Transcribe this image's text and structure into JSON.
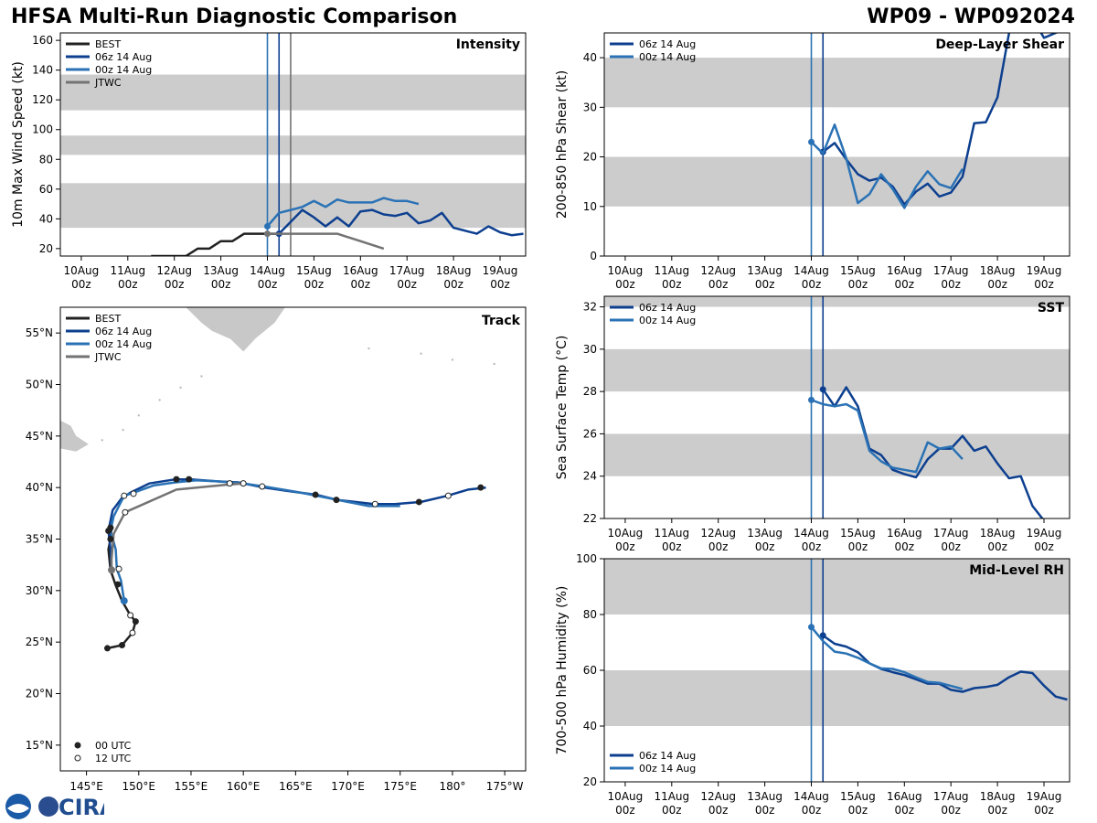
{
  "header": {
    "title_left": "HFSA Multi-Run Diagnostic Comparison",
    "title_right": "WP09 - WP092024"
  },
  "colors": {
    "best": "#222222",
    "run06": "#0d3f8f",
    "run00": "#2a72b5",
    "jtwc": "#737373",
    "band": "#cccccc",
    "land": "#c8c8c8"
  },
  "time_ticks": [
    "10Aug\n00z",
    "11Aug\n00z",
    "12Aug\n00z",
    "13Aug\n00z",
    "14Aug\n00z",
    "15Aug\n00z",
    "16Aug\n00z",
    "17Aug\n00z",
    "18Aug\n00z",
    "19Aug\n00z"
  ],
  "logo_text": "CIRA",
  "chart_data": [
    {
      "id": "intensity",
      "type": "line",
      "title": "Intensity",
      "ylabel": "10m Max Wind Speed (kt)",
      "xlim": [
        -0.45,
        9.55
      ],
      "ylim": [
        15,
        165
      ],
      "yticks": [
        20,
        40,
        60,
        80,
        100,
        120,
        140,
        160
      ],
      "bands": [
        [
          34,
          64
        ],
        [
          83,
          96
        ],
        [
          113,
          137
        ]
      ],
      "vlines": [
        4.0,
        4.25,
        4.5
      ],
      "legend": "top-left",
      "series": [
        {
          "name": "BEST",
          "color_key": "best",
          "x": [
            1.5,
            1.75,
            2,
            2.25,
            2.5,
            2.75,
            3,
            3.25,
            3.5,
            3.75,
            4,
            4.25
          ],
          "y": [
            15,
            15,
            15,
            15,
            20,
            20,
            25,
            25,
            30,
            30,
            30,
            30
          ]
        },
        {
          "name": "06z 14 Aug",
          "color_key": "run06",
          "x": [
            4.25,
            4.5,
            4.75,
            5,
            5.25,
            5.5,
            5.75,
            6,
            6.25,
            6.5,
            6.75,
            7,
            7.25,
            7.5,
            7.75,
            8,
            8.25,
            8.5,
            8.75,
            9,
            9.25,
            9.5
          ],
          "y": [
            30,
            38,
            46,
            41,
            35,
            41,
            35,
            45,
            46,
            43,
            42,
            44,
            37,
            39,
            44,
            34,
            32,
            30,
            35,
            31,
            29,
            30
          ]
        },
        {
          "name": "00z 14 Aug",
          "color_key": "run00",
          "x": [
            4,
            4.25,
            4.5,
            4.75,
            5,
            5.25,
            5.5,
            5.75,
            6,
            6.25,
            6.5,
            6.75,
            7,
            7.25
          ],
          "y": [
            35,
            44,
            46,
            48,
            52,
            48,
            53,
            51,
            51,
            51,
            54,
            52,
            52,
            50
          ]
        },
        {
          "name": "JTWC",
          "color_key": "jtwc",
          "x": [
            4,
            4.5,
            5,
            5.5,
            6,
            6.5
          ],
          "y": [
            30,
            30,
            30,
            30,
            25,
            20
          ]
        }
      ]
    },
    {
      "id": "shear",
      "type": "line",
      "title": "Deep-Layer Shear",
      "ylabel": "200-850 hPa Shear (kt)",
      "xlim": [
        -0.45,
        9.55
      ],
      "ylim": [
        0,
        45
      ],
      "yticks": [
        0,
        10,
        20,
        30,
        40
      ],
      "bands": [
        [
          10,
          20
        ],
        [
          30,
          40
        ]
      ],
      "vlines": [
        4.0,
        4.25
      ],
      "legend": "top-left",
      "series": [
        {
          "name": "06z 14 Aug",
          "color_key": "run06",
          "x": [
            4.25,
            4.5,
            4.75,
            5,
            5.25,
            5.5,
            5.75,
            6,
            6.25,
            6.5,
            6.75,
            7,
            7.25,
            7.5,
            7.75,
            8,
            8.25,
            8.5,
            8.75,
            9,
            9.25,
            9.5
          ],
          "y": [
            21,
            22.8,
            19.5,
            16.5,
            15.2,
            15.8,
            14,
            10.4,
            13,
            14.6,
            12,
            12.8,
            16,
            26.8,
            27,
            32,
            45,
            50,
            48,
            44,
            45,
            46
          ]
        },
        {
          "name": "00z 14 Aug",
          "color_key": "run00",
          "x": [
            4,
            4.25,
            4.5,
            4.75,
            5,
            5.25,
            5.5,
            5.75,
            6,
            6.25,
            6.5,
            6.75,
            7,
            7.25
          ],
          "y": [
            23,
            20.7,
            26.5,
            19.7,
            10.7,
            12.5,
            16.5,
            13.5,
            9.7,
            14,
            17.1,
            14.5,
            13.7,
            17.6
          ]
        }
      ]
    },
    {
      "id": "track",
      "type": "map",
      "title": "Track",
      "lon_ticks": [
        "145°E",
        "150°E",
        "155°E",
        "160°E",
        "165°E",
        "170°E",
        "175°E",
        "180°",
        "175°W"
      ],
      "lat_ticks": [
        "15°N",
        "20°N",
        "25°N",
        "30°N",
        "35°N",
        "40°N",
        "45°N",
        "50°N",
        "55°N"
      ],
      "lonlim": [
        142.5,
        187
      ],
      "latlim": [
        12.5,
        57.5
      ],
      "point_legend": [
        "00 UTC",
        "12 UTC"
      ],
      "legend": "top-left",
      "series": [
        {
          "name": "BEST",
          "color_key": "best",
          "lon": [
            147,
            148.4,
            149.4,
            149.7,
            149.2,
            148.4,
            147.8,
            147.3,
            147.1,
            147.3,
            147.4
          ],
          "lat": [
            24.4,
            24.7,
            25.9,
            27,
            27.6,
            29,
            30.5,
            32,
            34,
            35,
            36.1
          ]
        },
        {
          "name": "06z 14 Aug",
          "color_key": "run06",
          "lon": [
            147.4,
            147.3,
            147.1,
            147.5,
            148.4,
            149.2,
            151,
            153.5,
            155,
            157.5,
            159.5,
            162,
            164,
            167,
            169,
            172.5,
            174.5,
            177,
            179.5,
            181.5,
            183.2
          ],
          "lat": [
            32,
            34,
            35.8,
            37.8,
            39,
            39.5,
            40.4,
            40.8,
            40.8,
            40.6,
            40.5,
            40,
            39.7,
            39.3,
            38.8,
            38.4,
            38.4,
            38.6,
            39.2,
            39.8,
            40
          ]
        },
        {
          "name": "00z 14 Aug",
          "color_key": "run00",
          "lon": [
            148.6,
            148.3,
            147.9,
            147.8,
            147.3,
            147.6,
            148.6,
            149.5,
            151.4,
            153.5,
            155.5,
            157.5,
            160,
            162,
            165,
            168,
            172,
            175
          ],
          "lat": [
            29,
            31,
            32.1,
            34,
            35.8,
            37.2,
            39.2,
            39.5,
            40.2,
            40.5,
            40.7,
            40.6,
            40.4,
            40.1,
            39.6,
            39.0,
            38.2,
            38.2
          ]
        },
        {
          "name": "JTWC",
          "color_key": "jtwc",
          "lon": [
            147.4,
            147.4,
            147.6,
            148.7,
            153.6,
            158.7,
            160
          ],
          "lat": [
            32,
            33,
            35.5,
            37.6,
            39.8,
            40.3,
            40.4
          ]
        }
      ],
      "markers_00utc": [
        [
          147,
          24.4
        ],
        [
          148.4,
          24.7
        ],
        [
          149.7,
          27
        ],
        [
          147.3,
          35
        ],
        [
          147.3,
          36.1
        ],
        [
          147.1,
          35.8
        ],
        [
          153.6,
          40.8
        ],
        [
          154.8,
          40.8
        ],
        [
          166.9,
          39.3
        ],
        [
          168.9,
          38.8
        ],
        [
          176.8,
          38.6
        ],
        [
          182.7,
          40
        ],
        [
          148.0,
          30.6
        ]
      ],
      "markers_12utc": [
        [
          149.4,
          25.9
        ],
        [
          149.2,
          27.6
        ],
        [
          148.1,
          32.1
        ],
        [
          148.6,
          39.2
        ],
        [
          149.5,
          39.4
        ],
        [
          148.7,
          37.6
        ],
        [
          158.7,
          40.4
        ],
        [
          160,
          40.4
        ],
        [
          161.8,
          40.1
        ],
        [
          172.6,
          38.4
        ],
        [
          179.6,
          39.2
        ]
      ]
    },
    {
      "id": "sst",
      "type": "line",
      "title": "SST",
      "ylabel": "Sea Surface Temp (°C)",
      "xlim": [
        -0.45,
        9.55
      ],
      "ylim": [
        22,
        32.5
      ],
      "yticks": [
        22,
        24,
        26,
        28,
        30,
        32
      ],
      "bands": [
        [
          24,
          26
        ],
        [
          28,
          30
        ],
        [
          32,
          33
        ]
      ],
      "vlines": [
        4.0,
        4.25
      ],
      "legend": "top-left",
      "series": [
        {
          "name": "06z 14 Aug",
          "color_key": "run06",
          "x": [
            4.25,
            4.5,
            4.75,
            5,
            5.25,
            5.5,
            5.75,
            6,
            6.25,
            6.5,
            6.75,
            7,
            7.25,
            7.5,
            7.75,
            8,
            8.25,
            8.5,
            8.75,
            9,
            9.25,
            9.5
          ],
          "y": [
            28.1,
            27.3,
            28.2,
            27.3,
            25.3,
            25.0,
            24.3,
            24.1,
            23.95,
            24.8,
            25.3,
            25.3,
            25.9,
            25.2,
            25.4,
            24.6,
            23.9,
            24.0,
            22.6,
            21.9,
            21.5,
            21.2
          ]
        },
        {
          "name": "00z 14 Aug",
          "color_key": "run00",
          "x": [
            4,
            4.25,
            4.5,
            4.75,
            5,
            5.25,
            5.5,
            5.75,
            6,
            6.25,
            6.5,
            6.75,
            7,
            7.25
          ],
          "y": [
            27.6,
            27.4,
            27.3,
            27.4,
            27.1,
            25.2,
            24.7,
            24.4,
            24.3,
            24.2,
            25.6,
            25.3,
            25.4,
            24.8
          ]
        }
      ]
    },
    {
      "id": "rh",
      "type": "line",
      "title": "Mid-Level RH",
      "ylabel": "700-500 hPa Humidity (%)",
      "xlim": [
        -0.45,
        9.55
      ],
      "ylim": [
        20,
        100
      ],
      "yticks": [
        20,
        40,
        60,
        80,
        100
      ],
      "bands": [
        [
          40,
          60
        ],
        [
          80,
          100
        ]
      ],
      "vlines": [
        4.0,
        4.25
      ],
      "legend": "bottom-left",
      "series": [
        {
          "name": "06z 14 Aug",
          "color_key": "run06",
          "x": [
            4.25,
            4.5,
            4.75,
            5,
            5.25,
            5.5,
            5.75,
            6,
            6.25,
            6.5,
            6.75,
            7,
            7.25,
            7.5,
            7.75,
            8,
            8.25,
            8.5,
            8.75,
            9,
            9.25,
            9.5
          ],
          "y": [
            72.5,
            69.5,
            68.5,
            66.5,
            62.5,
            60.5,
            59.3,
            58.3,
            56.8,
            55.2,
            55.2,
            53.0,
            52.3,
            53.6,
            54.0,
            54.8,
            57.5,
            59.5,
            59.0,
            54.5,
            50.6,
            49.5
          ]
        },
        {
          "name": "00z 14 Aug",
          "color_key": "run00",
          "x": [
            4,
            4.25,
            4.5,
            4.75,
            5,
            5.25,
            5.5,
            5.75,
            6,
            6.25,
            6.5,
            6.75,
            7,
            7.25
          ],
          "y": [
            75.5,
            70.5,
            66.7,
            66.0,
            64.5,
            62.5,
            60.7,
            60.5,
            59.3,
            57.5,
            55.8,
            55.5,
            54.4,
            53.3
          ]
        }
      ]
    }
  ]
}
